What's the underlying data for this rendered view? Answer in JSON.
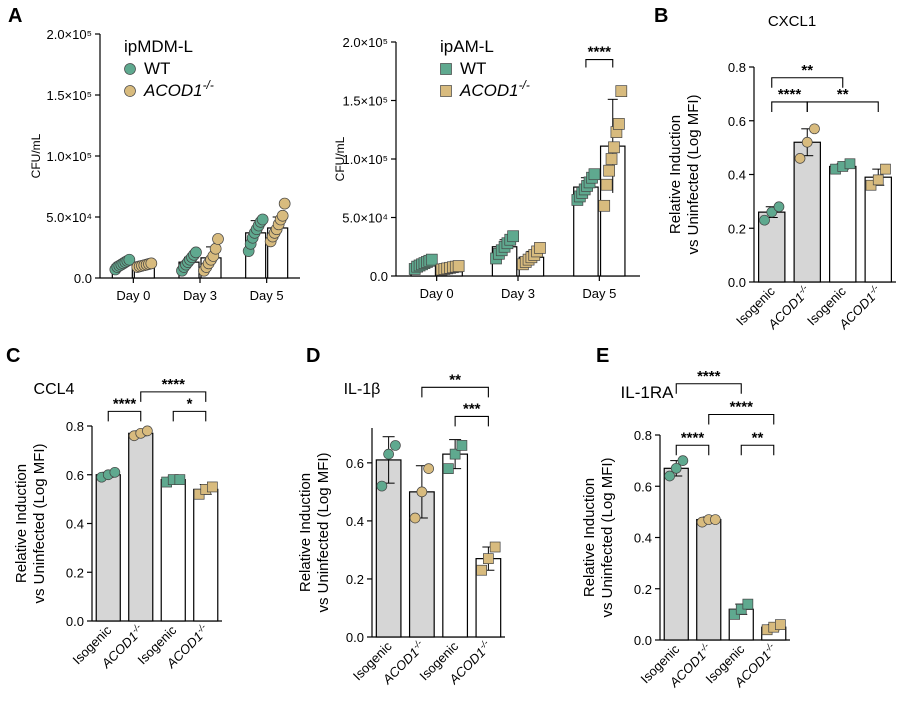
{
  "colors": {
    "wt": "#5fa98f",
    "ko": "#d8bb7e",
    "bar_gray": "#d6d6d6",
    "bar_white": "#ffffff"
  },
  "chart_data": [
    {
      "panel": "A",
      "type": "bar",
      "legend": {
        "title": "ipMDM-L",
        "placement": "top-left",
        "entries": [
          "WT",
          "ACOD1-/-"
        ]
      },
      "ylabel": "CFU/mL",
      "yticks": [
        "0.0",
        "5.0×10⁴",
        "1.0×10⁵",
        "1.5×10⁵",
        "2.0×10⁵"
      ],
      "ylim": [
        0,
        200000
      ],
      "categories": [
        "Day 0",
        "Day 3",
        "Day 5"
      ],
      "marker": "circle",
      "series": [
        {
          "name": "WT",
          "values": [
            11000,
            13000,
            37000
          ],
          "sd": [
            2500,
            4000,
            10000
          ],
          "points": [
            [
              7000,
              9000,
              10000,
              11000,
              12000,
              13000,
              14000,
              15000
            ],
            [
              6000,
              9000,
              11000,
              13000,
              15000,
              17000,
              19000,
              21000
            ],
            [
              22000,
              28000,
              33000,
              37000,
              40000,
              43000,
              46000,
              48000
            ]
          ]
        },
        {
          "name": "ACOD1-/-",
          "values": [
            10500,
            16500,
            41000
          ],
          "sd": [
            1500,
            9000,
            9000
          ],
          "points": [
            [
              9000,
              9500,
              10000,
              10500,
              11000,
              11500,
              12000
            ],
            [
              6000,
              9000,
              12000,
              15000,
              18000,
              24000,
              32000
            ],
            [
              30000,
              34000,
              37000,
              40000,
              44000,
              48000,
              51000,
              61000
            ]
          ]
        }
      ],
      "stats": []
    },
    {
      "panel": "",
      "type": "bar",
      "legend": {
        "title": "ipAM-L",
        "placement": "top-left",
        "entries": [
          "WT",
          "ACOD1-/-"
        ]
      },
      "ylabel": "CFU/mL",
      "yticks": [
        "0.0",
        "5.0×10⁴",
        "1.0×10⁵",
        "1.5×10⁵",
        "2.0×10⁵"
      ],
      "ylim": [
        0,
        200000
      ],
      "categories": [
        "Day 0",
        "Day 3",
        "Day 5"
      ],
      "marker": "square",
      "series": [
        {
          "name": "WT",
          "values": [
            10000,
            25000,
            76000
          ],
          "sd": [
            3000,
            6000,
            8000
          ],
          "points": [
            [
              6000,
              8000,
              9000,
              10000,
              11000,
              12000,
              13000,
              14000
            ],
            [
              15000,
              19000,
              22000,
              25000,
              28000,
              31000,
              34000
            ],
            [
              65000,
              68000,
              71000,
              74000,
              77000,
              80000,
              84000,
              87000
            ]
          ]
        },
        {
          "name": "ACOD1-/-",
          "values": [
            7000,
            16000,
            111000
          ],
          "sd": [
            1500,
            5000,
            40000
          ],
          "points": [
            [
              5500,
              6000,
              6500,
              7000,
              7500,
              8000,
              8500
            ],
            [
              10000,
              12000,
              14000,
              16000,
              18000,
              21000,
              24000
            ],
            [
              60000,
              78000,
              90000,
              100000,
              110000,
              123000,
              130000,
              158000
            ]
          ]
        }
      ],
      "stats": [
        {
          "label": "****",
          "from": [
            2,
            0
          ],
          "to": [
            2,
            1
          ],
          "y": 185000
        }
      ]
    },
    {
      "panel": "B",
      "type": "bar",
      "title": "CXCL1",
      "ylabel": [
        "Relative Induction",
        "vs Uninfected (Log MFI)"
      ],
      "yticks": [
        "0.0",
        "0.2",
        "0.4",
        "0.6",
        "0.8"
      ],
      "ylim": [
        0,
        0.8
      ],
      "categories": [
        "Isogenic",
        "ACOD1-/-",
        "Isogenic",
        "ACOD1-/-"
      ],
      "markers": [
        "circle",
        "circle",
        "square",
        "square"
      ],
      "series": [
        {
          "values": [
            0.26,
            0.52,
            0.43,
            0.39
          ],
          "sd": [
            0.02,
            0.05,
            0.01,
            0.03
          ],
          "points": [
            [
              0.23,
              0.26,
              0.28
            ],
            [
              0.46,
              0.52,
              0.57
            ],
            [
              0.42,
              0.43,
              0.44
            ],
            [
              0.36,
              0.38,
              0.42
            ]
          ]
        }
      ],
      "bar_colors": [
        "#d6d6d6",
        "#d6d6d6",
        "#ffffff",
        "#ffffff"
      ],
      "stats": [
        {
          "label": "****",
          "from": 0,
          "to": 1,
          "y": 0.67
        },
        {
          "label": "**",
          "from": 1,
          "to": 3,
          "y": 0.67
        },
        {
          "label": "**",
          "from": 0,
          "to": 2,
          "y": 0.76
        }
      ]
    },
    {
      "panel": "C",
      "type": "bar",
      "title": "CCL4",
      "ylabel": [
        "Relative Induction",
        "vs Uninfected (Log MFI)"
      ],
      "yticks": [
        "0.0",
        "0.2",
        "0.4",
        "0.6",
        "0.8"
      ],
      "ylim": [
        0,
        0.8
      ],
      "categories": [
        "Isogenic",
        "ACOD1-/-",
        "Isogenic",
        "ACOD1-/-"
      ],
      "markers": [
        "circle",
        "circle",
        "square",
        "square"
      ],
      "series": [
        {
          "values": [
            0.6,
            0.77,
            0.58,
            0.54
          ],
          "sd": [
            0.01,
            0.01,
            0.01,
            0.02
          ],
          "points": [
            [
              0.59,
              0.6,
              0.61
            ],
            [
              0.76,
              0.77,
              0.78
            ],
            [
              0.57,
              0.58,
              0.58
            ],
            [
              0.52,
              0.54,
              0.55
            ]
          ]
        }
      ],
      "bar_colors": [
        "#d6d6d6",
        "#d6d6d6",
        "#ffffff",
        "#ffffff"
      ],
      "stats": [
        {
          "label": "****",
          "from": 0,
          "to": 1,
          "y": 0.86
        },
        {
          "label": "*",
          "from": 2,
          "to": 3,
          "y": 0.86
        },
        {
          "label": "****",
          "from": 1,
          "to": 3,
          "y": 0.94
        }
      ]
    },
    {
      "panel": "D",
      "type": "bar",
      "title": "IL-1β",
      "ylabel": [
        "Relative Induction",
        "vs Uninfected (Log MFI)"
      ],
      "yticks": [
        "0.0",
        "0.2",
        "0.4",
        "0.6"
      ],
      "ylim": [
        0,
        0.72
      ],
      "categories": [
        "Isogenic",
        "ACOD1-/-",
        "Isogenic",
        "ACOD1-/-"
      ],
      "markers": [
        "circle",
        "circle",
        "square",
        "square"
      ],
      "series": [
        {
          "values": [
            0.61,
            0.5,
            0.63,
            0.27
          ],
          "sd": [
            0.08,
            0.09,
            0.05,
            0.04
          ],
          "points": [
            [
              0.52,
              0.63,
              0.66
            ],
            [
              0.41,
              0.5,
              0.58
            ],
            [
              0.58,
              0.63,
              0.66
            ],
            [
              0.23,
              0.27,
              0.31
            ]
          ]
        }
      ],
      "bar_colors": [
        "#d6d6d6",
        "#d6d6d6",
        "#ffffff",
        "#ffffff"
      ],
      "stats": [
        {
          "label": "***",
          "from": 2,
          "to": 3,
          "y": 0.76
        },
        {
          "label": "**",
          "from": 1,
          "to": 3,
          "y": 0.86
        }
      ]
    },
    {
      "panel": "E",
      "type": "bar",
      "title": "IL-1RA",
      "ylabel": [
        "Relative Induction",
        "vs Uninfected (Log MFI)"
      ],
      "yticks": [
        "0.0",
        "0.2",
        "0.4",
        "0.6",
        "0.8"
      ],
      "ylim": [
        0,
        0.8
      ],
      "categories": [
        "Isogenic",
        "ACOD1-/-",
        "Isogenic",
        "ACOD1-/-"
      ],
      "markers": [
        "circle",
        "circle",
        "square",
        "square"
      ],
      "series": [
        {
          "values": [
            0.67,
            0.47,
            0.12,
            0.05
          ],
          "sd": [
            0.03,
            0.01,
            0.02,
            0.01
          ],
          "points": [
            [
              0.64,
              0.67,
              0.7
            ],
            [
              0.46,
              0.47,
              0.47
            ],
            [
              0.1,
              0.12,
              0.14
            ],
            [
              0.04,
              0.05,
              0.06
            ]
          ]
        }
      ],
      "bar_colors": [
        "#d6d6d6",
        "#d6d6d6",
        "#ffffff",
        "#ffffff"
      ],
      "stats": [
        {
          "label": "****",
          "from": 0,
          "to": 1,
          "y": 0.76
        },
        {
          "label": "**",
          "from": 2,
          "to": 3,
          "y": 0.76
        },
        {
          "label": "****",
          "from": 1,
          "to": 3,
          "y": 0.88
        },
        {
          "label": "****",
          "from": 0,
          "to": 2,
          "y": 1.0
        }
      ]
    }
  ]
}
